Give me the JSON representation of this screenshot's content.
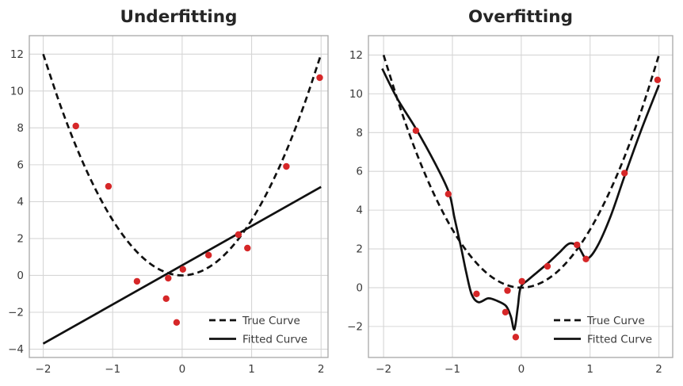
{
  "figure": {
    "background": "#ffffff"
  },
  "colors": {
    "curve": "#111111",
    "scatter": "#d62728",
    "grid": "#d6d6d6",
    "spine": "#a8a8a8",
    "tick_label": "#3a3a3a",
    "title": "#262626",
    "legend_text": "#3a3a3a"
  },
  "chart_data": [
    {
      "type": "line+scatter",
      "title": "Underfitting",
      "xlabel": "",
      "ylabel": "",
      "xlim": [
        -2.2,
        2.1
      ],
      "ylim": [
        -4.45,
        13.0
      ],
      "xticks": [
        -2,
        -1,
        0,
        1,
        2
      ],
      "yticks": [
        -4,
        -2,
        0,
        2,
        4,
        6,
        8,
        10,
        12
      ],
      "grid": true,
      "legend_position": "lower right",
      "legend": [
        {
          "label": "True Curve",
          "style": "dashed"
        },
        {
          "label": "Fitted Curve",
          "style": "solid"
        }
      ],
      "series": [
        {
          "name": "True Curve",
          "kind": "line",
          "style": "dashed",
          "smooth": true,
          "points": [
            [
              -2,
              12
            ],
            [
              -1.75,
              9.19
            ],
            [
              -1.5,
              6.75
            ],
            [
              -1.25,
              4.69
            ],
            [
              -1,
              3
            ],
            [
              -0.75,
              1.69
            ],
            [
              -0.5,
              0.75
            ],
            [
              -0.25,
              0.19
            ],
            [
              0,
              0
            ],
            [
              0.25,
              0.19
            ],
            [
              0.5,
              0.75
            ],
            [
              0.75,
              1.69
            ],
            [
              1,
              3
            ],
            [
              1.25,
              4.69
            ],
            [
              1.5,
              6.75
            ],
            [
              1.75,
              9.19
            ],
            [
              2,
              12
            ]
          ]
        },
        {
          "name": "Fitted Curve",
          "kind": "line",
          "style": "solid",
          "smooth": false,
          "points": [
            [
              -2,
              -3.7
            ],
            [
              2,
              4.8
            ]
          ]
        },
        {
          "name": "Data Points",
          "kind": "scatter",
          "points": [
            [
              -1.53,
              8.1
            ],
            [
              -1.06,
              4.83
            ],
            [
              -0.65,
              -0.32
            ],
            [
              -0.23,
              -1.26
            ],
            [
              -0.2,
              -0.15
            ],
            [
              -0.08,
              -2.55
            ],
            [
              0.01,
              0.33
            ],
            [
              0.38,
              1.1
            ],
            [
              0.81,
              2.21
            ],
            [
              0.94,
              1.48
            ],
            [
              1.5,
              5.91
            ],
            [
              1.98,
              10.72
            ]
          ]
        }
      ]
    },
    {
      "type": "line+scatter",
      "title": "Overfitting",
      "xlabel": "",
      "ylabel": "",
      "xlim": [
        -2.22,
        2.2
      ],
      "ylim": [
        -3.6,
        13.0
      ],
      "xticks": [
        -2,
        -1,
        0,
        1,
        2
      ],
      "yticks": [
        -2,
        0,
        2,
        4,
        6,
        8,
        10,
        12
      ],
      "grid": true,
      "legend_position": "lower right",
      "legend": [
        {
          "label": "True Curve",
          "style": "dashed"
        },
        {
          "label": "Fitted Curve",
          "style": "solid"
        }
      ],
      "series": [
        {
          "name": "True Curve",
          "kind": "line",
          "style": "dashed",
          "smooth": true,
          "points": [
            [
              -2,
              12
            ],
            [
              -1.75,
              9.19
            ],
            [
              -1.5,
              6.75
            ],
            [
              -1.25,
              4.69
            ],
            [
              -1,
              3
            ],
            [
              -0.75,
              1.69
            ],
            [
              -0.5,
              0.75
            ],
            [
              -0.25,
              0.19
            ],
            [
              0,
              0
            ],
            [
              0.25,
              0.19
            ],
            [
              0.5,
              0.75
            ],
            [
              0.75,
              1.69
            ],
            [
              1,
              3
            ],
            [
              1.25,
              4.69
            ],
            [
              1.5,
              6.75
            ],
            [
              1.75,
              9.19
            ],
            [
              2,
              12
            ]
          ]
        },
        {
          "name": "Fitted Curve",
          "kind": "line",
          "style": "solid",
          "smooth": true,
          "points": [
            [
              -2.02,
              11.3
            ],
            [
              -1.8,
              9.75
            ],
            [
              -1.53,
              8.2
            ],
            [
              -1.25,
              6.4
            ],
            [
              -1.05,
              4.9
            ],
            [
              -0.97,
              3.6
            ],
            [
              -0.87,
              2.0
            ],
            [
              -0.8,
              0.8
            ],
            [
              -0.72,
              -0.35
            ],
            [
              -0.62,
              -0.75
            ],
            [
              -0.48,
              -0.55
            ],
            [
              -0.35,
              -0.68
            ],
            [
              -0.22,
              -0.95
            ],
            [
              -0.15,
              -1.5
            ],
            [
              -0.1,
              -2.15
            ],
            [
              -0.05,
              -1.0
            ],
            [
              -0.01,
              0.0
            ],
            [
              0.1,
              0.4
            ],
            [
              0.25,
              0.85
            ],
            [
              0.4,
              1.3
            ],
            [
              0.55,
              1.8
            ],
            [
              0.7,
              2.28
            ],
            [
              0.83,
              2.1
            ],
            [
              0.95,
              1.5
            ],
            [
              1.1,
              2.1
            ],
            [
              1.3,
              3.7
            ],
            [
              1.5,
              5.75
            ],
            [
              1.75,
              8.2
            ],
            [
              2.0,
              10.45
            ]
          ]
        },
        {
          "name": "Data Points",
          "kind": "scatter",
          "points": [
            [
              -1.53,
              8.1
            ],
            [
              -1.06,
              4.83
            ],
            [
              -0.65,
              -0.32
            ],
            [
              -0.23,
              -1.26
            ],
            [
              -0.2,
              -0.15
            ],
            [
              -0.08,
              -2.55
            ],
            [
              0.01,
              0.33
            ],
            [
              0.38,
              1.1
            ],
            [
              0.81,
              2.21
            ],
            [
              0.94,
              1.48
            ],
            [
              1.5,
              5.91
            ],
            [
              1.98,
              10.72
            ]
          ]
        }
      ]
    }
  ]
}
